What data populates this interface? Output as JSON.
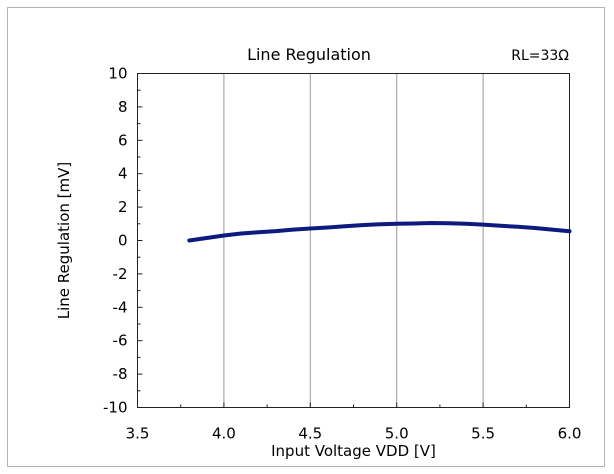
{
  "chart_data": {
    "type": "line",
    "title": "Line Regulation",
    "annotation": "RL=33Ω",
    "xlabel": "Input Voltage VDD [V]",
    "ylabel": "Line Regulation [mV]",
    "xlim": [
      3.5,
      6.0
    ],
    "ylim": [
      -10,
      10
    ],
    "xticks": [
      3.5,
      4.0,
      4.5,
      5.0,
      5.5,
      6.0
    ],
    "xtick_labels": [
      "3.5",
      "4.0",
      "4.5",
      "5.0",
      "5.5",
      "6.0"
    ],
    "yticks": [
      10,
      8,
      6,
      4,
      2,
      0,
      -2,
      -4,
      -6,
      -8,
      -10
    ],
    "ytick_labels": [
      "10",
      "8",
      "6",
      "4",
      "2",
      "0",
      "-2",
      "-4",
      "-6",
      "-8",
      "-10"
    ],
    "grid": "vertical",
    "line_color": "#0d1a80",
    "series": [
      {
        "x": [
          3.8,
          3.9,
          4.0,
          4.1,
          4.2,
          4.3,
          4.4,
          4.5,
          4.6,
          4.7,
          4.8,
          4.9,
          5.0,
          5.1,
          5.2,
          5.3,
          5.4,
          5.5,
          5.6,
          5.7,
          5.8,
          5.9,
          6.0
        ],
        "values": [
          0.0,
          0.15,
          0.3,
          0.42,
          0.5,
          0.56,
          0.65,
          0.72,
          0.78,
          0.85,
          0.92,
          0.97,
          1.0,
          1.02,
          1.05,
          1.03,
          1.0,
          0.95,
          0.88,
          0.82,
          0.75,
          0.65,
          0.55
        ]
      }
    ]
  }
}
